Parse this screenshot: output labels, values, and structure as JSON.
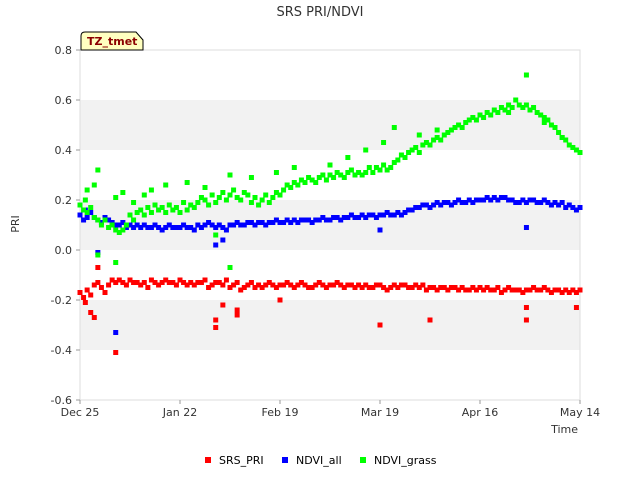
{
  "chart_data": {
    "type": "scatter",
    "title": "SRS PRI/NDVI",
    "xlabel": "Time",
    "ylabel": "PRI",
    "badge": "TZ_tmet",
    "x_range": [
      0,
      140
    ],
    "ylim": [
      -0.6,
      0.8
    ],
    "y_ticks": [
      {
        "value": 0.8,
        "label": "0.8"
      },
      {
        "value": 0.6,
        "label": "0.6"
      },
      {
        "value": 0.4,
        "label": "0.4"
      },
      {
        "value": 0.2,
        "label": "0.2"
      },
      {
        "value": 0.0,
        "label": "0.0"
      },
      {
        "value": -0.2,
        "label": "-0.2"
      },
      {
        "value": -0.4,
        "label": "-0.4"
      },
      {
        "value": -0.6,
        "label": "-0.6"
      }
    ],
    "x_ticks": [
      {
        "value": 0,
        "label": "Dec 25"
      },
      {
        "value": 28,
        "label": "Jan 22"
      },
      {
        "value": 56,
        "label": "Feb 19"
      },
      {
        "value": 84,
        "label": "Mar 19"
      },
      {
        "value": 112,
        "label": "Apr 16"
      },
      {
        "value": 140,
        "label": "May 14"
      }
    ],
    "grid_bands": true,
    "legend_position": "bottom",
    "series": [
      {
        "name": "SRS_PRI",
        "color": "#ff0000",
        "x": [
          0,
          1,
          1.5,
          2,
          3,
          4,
          5,
          6,
          7,
          8,
          9,
          10,
          11,
          12,
          13,
          14,
          15,
          16,
          17,
          18,
          19,
          20,
          21,
          22,
          23,
          24,
          25,
          26,
          27,
          28,
          29,
          30,
          31,
          32,
          33,
          34,
          35,
          36,
          37,
          38,
          39,
          40,
          41,
          42,
          43,
          44,
          45,
          46,
          47,
          48,
          49,
          50,
          51,
          52,
          53,
          54,
          55,
          56,
          57,
          58,
          59,
          60,
          61,
          62,
          63,
          64,
          65,
          66,
          67,
          68,
          69,
          70,
          71,
          72,
          73,
          74,
          75,
          76,
          77,
          78,
          79,
          80,
          81,
          82,
          83,
          84,
          85,
          86,
          87,
          88,
          89,
          90,
          91,
          92,
          93,
          94,
          95,
          96,
          97,
          98,
          99,
          100,
          101,
          102,
          103,
          104,
          105,
          106,
          107,
          108,
          109,
          110,
          111,
          112,
          113,
          114,
          115,
          116,
          117,
          118,
          119,
          120,
          121,
          122,
          123,
          124,
          125,
          126,
          127,
          128,
          129,
          130,
          131,
          132,
          133,
          134,
          135,
          136,
          137,
          138,
          139,
          140,
          3,
          4,
          5,
          10,
          38,
          38,
          40,
          44,
          44,
          56,
          84,
          98,
          125,
          125,
          139
        ],
        "y": [
          -0.17,
          -0.19,
          -0.21,
          -0.16,
          -0.18,
          -0.14,
          -0.13,
          -0.15,
          -0.17,
          -0.14,
          -0.12,
          -0.13,
          -0.12,
          -0.13,
          -0.14,
          -0.12,
          -0.13,
          -0.13,
          -0.14,
          -0.13,
          -0.15,
          -0.12,
          -0.13,
          -0.14,
          -0.13,
          -0.12,
          -0.13,
          -0.13,
          -0.14,
          -0.12,
          -0.13,
          -0.14,
          -0.13,
          -0.14,
          -0.13,
          -0.13,
          -0.12,
          -0.15,
          -0.14,
          -0.13,
          -0.13,
          -0.14,
          -0.12,
          -0.15,
          -0.14,
          -0.13,
          -0.16,
          -0.15,
          -0.14,
          -0.13,
          -0.15,
          -0.14,
          -0.15,
          -0.14,
          -0.13,
          -0.14,
          -0.15,
          -0.14,
          -0.14,
          -0.13,
          -0.14,
          -0.15,
          -0.14,
          -0.13,
          -0.14,
          -0.15,
          -0.15,
          -0.14,
          -0.13,
          -0.14,
          -0.15,
          -0.14,
          -0.14,
          -0.13,
          -0.14,
          -0.15,
          -0.14,
          -0.14,
          -0.15,
          -0.14,
          -0.15,
          -0.14,
          -0.15,
          -0.15,
          -0.14,
          -0.14,
          -0.15,
          -0.16,
          -0.15,
          -0.14,
          -0.15,
          -0.14,
          -0.14,
          -0.15,
          -0.15,
          -0.14,
          -0.15,
          -0.14,
          -0.16,
          -0.15,
          -0.15,
          -0.16,
          -0.15,
          -0.15,
          -0.16,
          -0.15,
          -0.15,
          -0.16,
          -0.15,
          -0.16,
          -0.16,
          -0.15,
          -0.16,
          -0.15,
          -0.16,
          -0.15,
          -0.16,
          -0.16,
          -0.15,
          -0.17,
          -0.16,
          -0.15,
          -0.16,
          -0.16,
          -0.16,
          -0.17,
          -0.16,
          -0.16,
          -0.15,
          -0.16,
          -0.16,
          -0.15,
          -0.16,
          -0.17,
          -0.16,
          -0.16,
          -0.17,
          -0.16,
          -0.17,
          -0.16,
          -0.17,
          -0.16,
          -0.25,
          -0.27,
          -0.07,
          -0.41,
          -0.31,
          -0.28,
          -0.22,
          -0.26,
          -0.24,
          -0.2,
          -0.3,
          -0.28,
          -0.28,
          -0.23,
          -0.23
        ]
      },
      {
        "name": "NDVI_all",
        "color": "#0000ff",
        "x": [
          0,
          1,
          1.5,
          2,
          3,
          4,
          5,
          6,
          7,
          8,
          9,
          10,
          11,
          12,
          13,
          14,
          15,
          16,
          17,
          18,
          19,
          20,
          21,
          22,
          23,
          24,
          25,
          26,
          27,
          28,
          29,
          30,
          31,
          32,
          33,
          34,
          35,
          36,
          37,
          38,
          39,
          40,
          41,
          42,
          43,
          44,
          45,
          46,
          47,
          48,
          49,
          50,
          51,
          52,
          53,
          54,
          55,
          56,
          57,
          58,
          59,
          60,
          61,
          62,
          63,
          64,
          65,
          66,
          67,
          68,
          69,
          70,
          71,
          72,
          73,
          74,
          75,
          76,
          77,
          78,
          79,
          80,
          81,
          82,
          83,
          84,
          85,
          86,
          87,
          88,
          89,
          90,
          91,
          92,
          93,
          94,
          95,
          96,
          97,
          98,
          99,
          100,
          101,
          102,
          103,
          104,
          105,
          106,
          107,
          108,
          109,
          110,
          111,
          112,
          113,
          114,
          115,
          116,
          117,
          118,
          119,
          120,
          121,
          122,
          123,
          124,
          125,
          126,
          127,
          128,
          129,
          130,
          131,
          132,
          133,
          134,
          135,
          136,
          137,
          138,
          139,
          140,
          5,
          10,
          38,
          40,
          84,
          125
        ],
        "y": [
          0.14,
          0.12,
          0.16,
          0.13,
          0.15,
          0.13,
          0.12,
          0.11,
          0.13,
          0.12,
          0.11,
          0.1,
          0.1,
          0.11,
          0.09,
          0.1,
          0.09,
          0.1,
          0.09,
          0.1,
          0.09,
          0.09,
          0.1,
          0.09,
          0.08,
          0.09,
          0.1,
          0.09,
          0.09,
          0.09,
          0.1,
          0.09,
          0.09,
          0.08,
          0.1,
          0.09,
          0.1,
          0.11,
          0.1,
          0.09,
          0.1,
          0.09,
          0.08,
          0.1,
          0.1,
          0.11,
          0.1,
          0.1,
          0.11,
          0.11,
          0.1,
          0.11,
          0.11,
          0.1,
          0.11,
          0.11,
          0.12,
          0.11,
          0.11,
          0.12,
          0.11,
          0.12,
          0.11,
          0.12,
          0.12,
          0.12,
          0.11,
          0.12,
          0.12,
          0.13,
          0.12,
          0.12,
          0.13,
          0.13,
          0.12,
          0.13,
          0.13,
          0.14,
          0.13,
          0.13,
          0.14,
          0.13,
          0.14,
          0.14,
          0.13,
          0.14,
          0.14,
          0.15,
          0.14,
          0.14,
          0.15,
          0.14,
          0.15,
          0.16,
          0.16,
          0.17,
          0.17,
          0.18,
          0.18,
          0.17,
          0.18,
          0.19,
          0.18,
          0.19,
          0.19,
          0.18,
          0.19,
          0.2,
          0.19,
          0.19,
          0.2,
          0.19,
          0.2,
          0.2,
          0.2,
          0.21,
          0.2,
          0.21,
          0.2,
          0.21,
          0.21,
          0.2,
          0.2,
          0.19,
          0.19,
          0.2,
          0.19,
          0.2,
          0.2,
          0.19,
          0.19,
          0.2,
          0.19,
          0.18,
          0.19,
          0.18,
          0.19,
          0.17,
          0.18,
          0.17,
          0.16,
          0.17,
          -0.01,
          -0.33,
          0.02,
          0.04,
          0.08,
          0.09
        ]
      },
      {
        "name": "NDVI_grass",
        "color": "#00ff00",
        "x": [
          0,
          1,
          1.5,
          2,
          3,
          4,
          5,
          6,
          7,
          8,
          9,
          10,
          11,
          12,
          13,
          14,
          15,
          16,
          17,
          18,
          19,
          20,
          21,
          22,
          23,
          24,
          25,
          26,
          27,
          28,
          29,
          30,
          31,
          32,
          33,
          34,
          35,
          36,
          37,
          38,
          39,
          40,
          41,
          42,
          43,
          44,
          45,
          46,
          47,
          48,
          49,
          50,
          51,
          52,
          53,
          54,
          55,
          56,
          57,
          58,
          59,
          60,
          61,
          62,
          63,
          64,
          65,
          66,
          67,
          68,
          69,
          70,
          71,
          72,
          73,
          74,
          75,
          76,
          77,
          78,
          79,
          80,
          81,
          82,
          83,
          84,
          85,
          86,
          87,
          88,
          89,
          90,
          91,
          92,
          93,
          94,
          95,
          96,
          97,
          98,
          99,
          100,
          101,
          102,
          103,
          104,
          105,
          106,
          107,
          108,
          109,
          110,
          111,
          112,
          113,
          114,
          115,
          116,
          117,
          118,
          119,
          120,
          121,
          122,
          123,
          124,
          125,
          126,
          127,
          128,
          129,
          130,
          131,
          132,
          133,
          134,
          135,
          136,
          137,
          138,
          139,
          140,
          5,
          2,
          4,
          10,
          12,
          15,
          18,
          20,
          24,
          30,
          35,
          42,
          48,
          55,
          60,
          70,
          75,
          80,
          85,
          95,
          100,
          120,
          125,
          130,
          135,
          5,
          10,
          42,
          38,
          88
        ],
        "y": [
          0.18,
          0.16,
          0.2,
          0.15,
          0.17,
          0.13,
          0.12,
          0.1,
          0.12,
          0.09,
          0.1,
          0.08,
          0.07,
          0.08,
          0.1,
          0.14,
          0.12,
          0.15,
          0.16,
          0.14,
          0.17,
          0.15,
          0.18,
          0.16,
          0.17,
          0.15,
          0.18,
          0.16,
          0.17,
          0.15,
          0.19,
          0.16,
          0.18,
          0.17,
          0.19,
          0.21,
          0.2,
          0.18,
          0.22,
          0.19,
          0.21,
          0.23,
          0.2,
          0.22,
          0.24,
          0.21,
          0.2,
          0.23,
          0.22,
          0.19,
          0.21,
          0.18,
          0.2,
          0.22,
          0.19,
          0.21,
          0.23,
          0.22,
          0.24,
          0.26,
          0.25,
          0.27,
          0.26,
          0.28,
          0.27,
          0.29,
          0.28,
          0.27,
          0.29,
          0.3,
          0.28,
          0.3,
          0.29,
          0.31,
          0.3,
          0.29,
          0.31,
          0.32,
          0.3,
          0.31,
          0.3,
          0.31,
          0.33,
          0.31,
          0.33,
          0.32,
          0.34,
          0.32,
          0.33,
          0.35,
          0.36,
          0.38,
          0.37,
          0.39,
          0.4,
          0.41,
          0.39,
          0.42,
          0.43,
          0.42,
          0.44,
          0.45,
          0.44,
          0.46,
          0.47,
          0.48,
          0.49,
          0.5,
          0.49,
          0.51,
          0.52,
          0.53,
          0.52,
          0.54,
          0.53,
          0.55,
          0.54,
          0.56,
          0.55,
          0.57,
          0.56,
          0.58,
          0.57,
          0.6,
          0.58,
          0.57,
          0.58,
          0.56,
          0.57,
          0.55,
          0.54,
          0.53,
          0.52,
          0.5,
          0.49,
          0.47,
          0.45,
          0.44,
          0.42,
          0.41,
          0.4,
          0.39,
          0.32,
          0.24,
          0.26,
          0.21,
          0.23,
          0.19,
          0.22,
          0.24,
          0.26,
          0.27,
          0.25,
          0.3,
          0.29,
          0.31,
          0.33,
          0.34,
          0.37,
          0.4,
          0.43,
          0.46,
          0.48,
          0.55,
          0.7,
          0.51,
          0.45,
          -0.02,
          -0.05,
          -0.07,
          0.06,
          0.49
        ]
      }
    ]
  }
}
